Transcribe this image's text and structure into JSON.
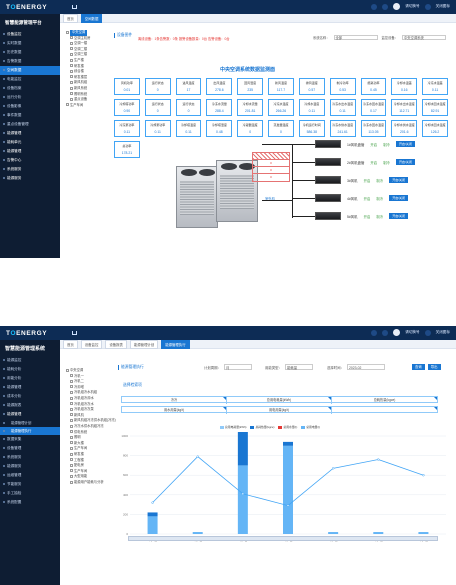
{
  "brand": {
    "logo_prefix": "T",
    "logo_o": "O",
    "logo_suffix": "ENERGY",
    "accent": "#1976d2"
  },
  "panel1": {
    "platform_title": "智慧能源管理平台",
    "top_user": "请切换号",
    "top_fullscreen": "关闭图标",
    "sidebar": [
      {
        "label": "设备监控",
        "active": false,
        "group": true
      },
      {
        "label": "实时数据",
        "active": false
      },
      {
        "label": "历史数据",
        "active": false
      },
      {
        "label": "告警数据",
        "active": false
      },
      {
        "label": "空间数据",
        "active": true
      },
      {
        "label": "电能监控",
        "active": false
      },
      {
        "label": "设备档案",
        "active": false
      },
      {
        "label": "运行分析",
        "active": false
      },
      {
        "label": "设备影像",
        "active": false
      },
      {
        "label": "事件数据",
        "active": false
      },
      {
        "label": "重点设备管理",
        "active": false
      },
      {
        "label": "能源管理",
        "active": false,
        "group": true
      },
      {
        "label": "能耗单元",
        "active": false,
        "group": true
      },
      {
        "label": "能源管理",
        "active": false,
        "group": true
      },
      {
        "label": "告警中心",
        "active": false,
        "group": true
      },
      {
        "label": "系统服务",
        "active": false,
        "group": true
      },
      {
        "label": "能源服务",
        "active": false,
        "group": true
      }
    ],
    "tabs": [
      {
        "label": "首页",
        "on": false
      },
      {
        "label": "空间数据",
        "on": true
      }
    ],
    "tree": [
      {
        "label": "中央空调",
        "level": 1,
        "selected": true
      },
      {
        "label": "空调主机房",
        "level": 2
      },
      {
        "label": "空调一楼",
        "level": 2
      },
      {
        "label": "空调二楼",
        "level": 2
      },
      {
        "label": "空调三楼",
        "level": 2
      },
      {
        "label": "生产楼",
        "level": 2
      },
      {
        "label": "研发楼",
        "level": 2
      },
      {
        "label": "综合楼",
        "level": 2
      },
      {
        "label": "研发楼层",
        "level": 2
      },
      {
        "label": "新风机组",
        "level": 2
      },
      {
        "label": "新风系统",
        "level": 2
      },
      {
        "label": "照明系统",
        "level": 2
      },
      {
        "label": "重点设备",
        "level": 2
      },
      {
        "label": "生产车间",
        "level": 1
      }
    ],
    "section_label": "设备图件",
    "alarm_text": "离线设备：1条告警数：0条 报警设备数量：0台 告警设备：0台",
    "selectors": [
      {
        "label": "系统名称：",
        "value": "全部"
      },
      {
        "label": "监控设备：",
        "value": "中央空调系统"
      }
    ],
    "system_title": "中央空调系统数据监测面",
    "kpis": [
      {
        "label": "风机功率",
        "value": "0.01"
      },
      {
        "label": "运行状态",
        "value": "0"
      },
      {
        "label": "进风温度",
        "value": "17"
      },
      {
        "label": "出风温度",
        "value": "278.6"
      },
      {
        "label": "回风湿度",
        "value": "235"
      },
      {
        "label": "新风温度",
        "value": "117.7"
      },
      {
        "label": "排风温度",
        "value": "0.57"
      },
      {
        "label": "制冷功率",
        "value": "0.53"
      },
      {
        "label": "能耗功率",
        "value": "0.45"
      },
      {
        "label": "冷却水温差",
        "value": "0.16"
      },
      {
        "label": "冷冻水温差",
        "value": "0.11"
      },
      {
        "label": "冷却塔功率",
        "value": "0.90"
      },
      {
        "label": "运行状态",
        "value": "0"
      },
      {
        "label": "运行状态",
        "value": "0"
      },
      {
        "label": "冷冻水流量",
        "value": "288.4"
      },
      {
        "label": "冷却水流量",
        "value": "201.81"
      },
      {
        "label": "冷冻水温度",
        "value": "266.26"
      },
      {
        "label": "冷却水温度",
        "value": "0.11"
      },
      {
        "label": "冷冻水出水温度",
        "value": "0.11"
      },
      {
        "label": "冷冻水回水温度",
        "value": "0.17"
      },
      {
        "label": "冷却水出水温度",
        "value": "112.71"
      },
      {
        "label": "冷却水回水温度",
        "value": "82.91"
      },
      {
        "label": "冷冻泵功率",
        "value": "0.11"
      },
      {
        "label": "冷却泵功率",
        "value": "0.11"
      },
      {
        "label": "冷却塔温度",
        "value": "0.11"
      },
      {
        "label": "冷却塔湿度",
        "value": "0.48"
      },
      {
        "label": "冷凝器温度",
        "value": "0"
      },
      {
        "label": "蒸发器温度",
        "value": "0"
      },
      {
        "label": "冷机运行时间",
        "value": "586.38"
      },
      {
        "label": "冷冻水供水温度",
        "value": "241.61"
      },
      {
        "label": "冷冻水回水温度",
        "value": "113.05"
      },
      {
        "label": "冷却水供水温度",
        "value": "201.6"
      },
      {
        "label": "冷却水回水温度",
        "value": "126.2"
      },
      {
        "label": "总功率",
        "value": "178.21"
      }
    ],
    "redbox": {
      "rows": [
        "0",
        "0",
        "0"
      ]
    },
    "indoor_units": [
      {
        "name": "1#风机盘管",
        "state": "开启",
        "mode": "制冷",
        "button": "开启/关闭"
      },
      {
        "name": "2#风机盘管",
        "state": "开启",
        "mode": "制冷",
        "button": "开启/关闭"
      },
      {
        "name": "3#风机",
        "state": "开启",
        "mode": "制冷",
        "button": "开启/关闭"
      },
      {
        "name": "4#风机",
        "state": "开启",
        "mode": "制冷",
        "button": "开启/关闭"
      },
      {
        "name": "5#风机",
        "state": "开启",
        "mode": "制冷",
        "button": "开启/关闭"
      }
    ],
    "mid_label": "室外机"
  },
  "panel2": {
    "platform_title": "智慧能源管理系统",
    "top_user": "请切换号",
    "top_fullscreen": "关闭图标",
    "sidebar": [
      {
        "label": "能源监控",
        "active": false
      },
      {
        "label": "能耗分析",
        "active": false
      },
      {
        "label": "用能分析",
        "active": false
      },
      {
        "label": "能源管理",
        "active": false
      },
      {
        "label": "成本分析",
        "active": false
      },
      {
        "label": "能源报表",
        "active": false
      },
      {
        "label": "能源管理",
        "active": false,
        "group": true
      },
      {
        "label": "能源管理计划",
        "active": false,
        "sub": true
      },
      {
        "label": "能源管理执行",
        "active": true,
        "sub": true
      },
      {
        "label": "数据采集",
        "active": false
      },
      {
        "label": "设备管理",
        "active": false
      },
      {
        "label": "系统服务",
        "active": false
      },
      {
        "label": "能源服务",
        "active": false
      },
      {
        "label": "运维管理",
        "active": false
      },
      {
        "label": "节能服务",
        "active": false
      },
      {
        "label": "手工抽检",
        "active": false
      },
      {
        "label": "系统配置",
        "active": false
      }
    ],
    "tabs": [
      {
        "label": "首页",
        "on": false
      },
      {
        "label": "设备监控",
        "on": false
      },
      {
        "label": "设备报表",
        "on": false
      },
      {
        "label": "能源管理计划",
        "on": false
      },
      {
        "label": "能源管理执行",
        "on": true
      }
    ],
    "tree": [
      {
        "label": "中央空调",
        "level": 1
      },
      {
        "label": "冷机一",
        "level": 2
      },
      {
        "label": "冷机二",
        "level": 2
      },
      {
        "label": "冷却塔",
        "level": 2
      },
      {
        "label": "冷机组冷水机组",
        "level": 2
      },
      {
        "label": "冷机组冷却水",
        "level": 2
      },
      {
        "label": "冷机组冷冻水",
        "level": 2
      },
      {
        "label": "冷机组冷冻泵",
        "level": 2
      },
      {
        "label": "新风机",
        "level": 2
      },
      {
        "label": "新风机组冷冻供水机组(冷冻)",
        "level": 2
      },
      {
        "label": "冷冻水供水机组冷冻",
        "level": 2
      },
      {
        "label": "供电系统",
        "level": 2
      },
      {
        "label": "照明",
        "level": 2
      },
      {
        "label": "新大楼",
        "level": 2
      },
      {
        "label": "生产车间",
        "level": 2
      },
      {
        "label": "研发楼",
        "level": 2
      },
      {
        "label": "工程楼",
        "level": 2
      },
      {
        "label": "配电房",
        "level": 2
      },
      {
        "label": "生产车间",
        "level": 2
      },
      {
        "label": "大型用能",
        "level": 2
      },
      {
        "label": "能源用户能耗与分析",
        "level": 2
      }
    ],
    "section_label": "能源管理执行",
    "controls": {
      "period_label": "计划周期：",
      "period_value": "月",
      "type_label": "用能类型：",
      "type_value": "能耗量",
      "date_label": "选择时间：",
      "date_value": "2023-02",
      "search_btn": "查询",
      "export_btn": "导出"
    },
    "block_title": "选择检索项",
    "metric_rows": [
      [
        "冷冷",
        "总用电耗量(kWh)",
        "总耗热量(kgce)"
      ],
      [
        "用水用量(kg/t)",
        "用电用量(kg/t)",
        ""
      ]
    ],
    "legend": [
      {
        "name": "总用电耗量(kWh)",
        "color": "#90caf9"
      },
      {
        "name": "总耗热量(kgce)",
        "color": "#1976d2"
      },
      {
        "name": "总用水量(t)",
        "color": "#e53935"
      },
      {
        "name": "总用电量(t)",
        "color": "#64b5f6"
      }
    ],
    "chart_data": {
      "type": "bar",
      "categories": [
        "2月1日",
        "2月2日",
        "2月3日",
        "2月4日",
        "2月5日",
        "2月6日",
        "2月7日"
      ],
      "series": [
        {
          "name": "总用电耗量(kWh)",
          "values": [
            180,
            20,
            700,
            900,
            20,
            20,
            20
          ]
        },
        {
          "name": "总耗热量(kgce)",
          "values": [
            40,
            0,
            380,
            40,
            0,
            0,
            0
          ]
        },
        {
          "name": "总用电量(t)",
          "values": [
            320,
            790,
            410,
            290,
            670,
            760,
            600
          ]
        }
      ],
      "yticks": [
        "1000",
        "800",
        "600",
        "400",
        "200",
        "0"
      ],
      "ylim": [
        0,
        1000
      ]
    }
  }
}
